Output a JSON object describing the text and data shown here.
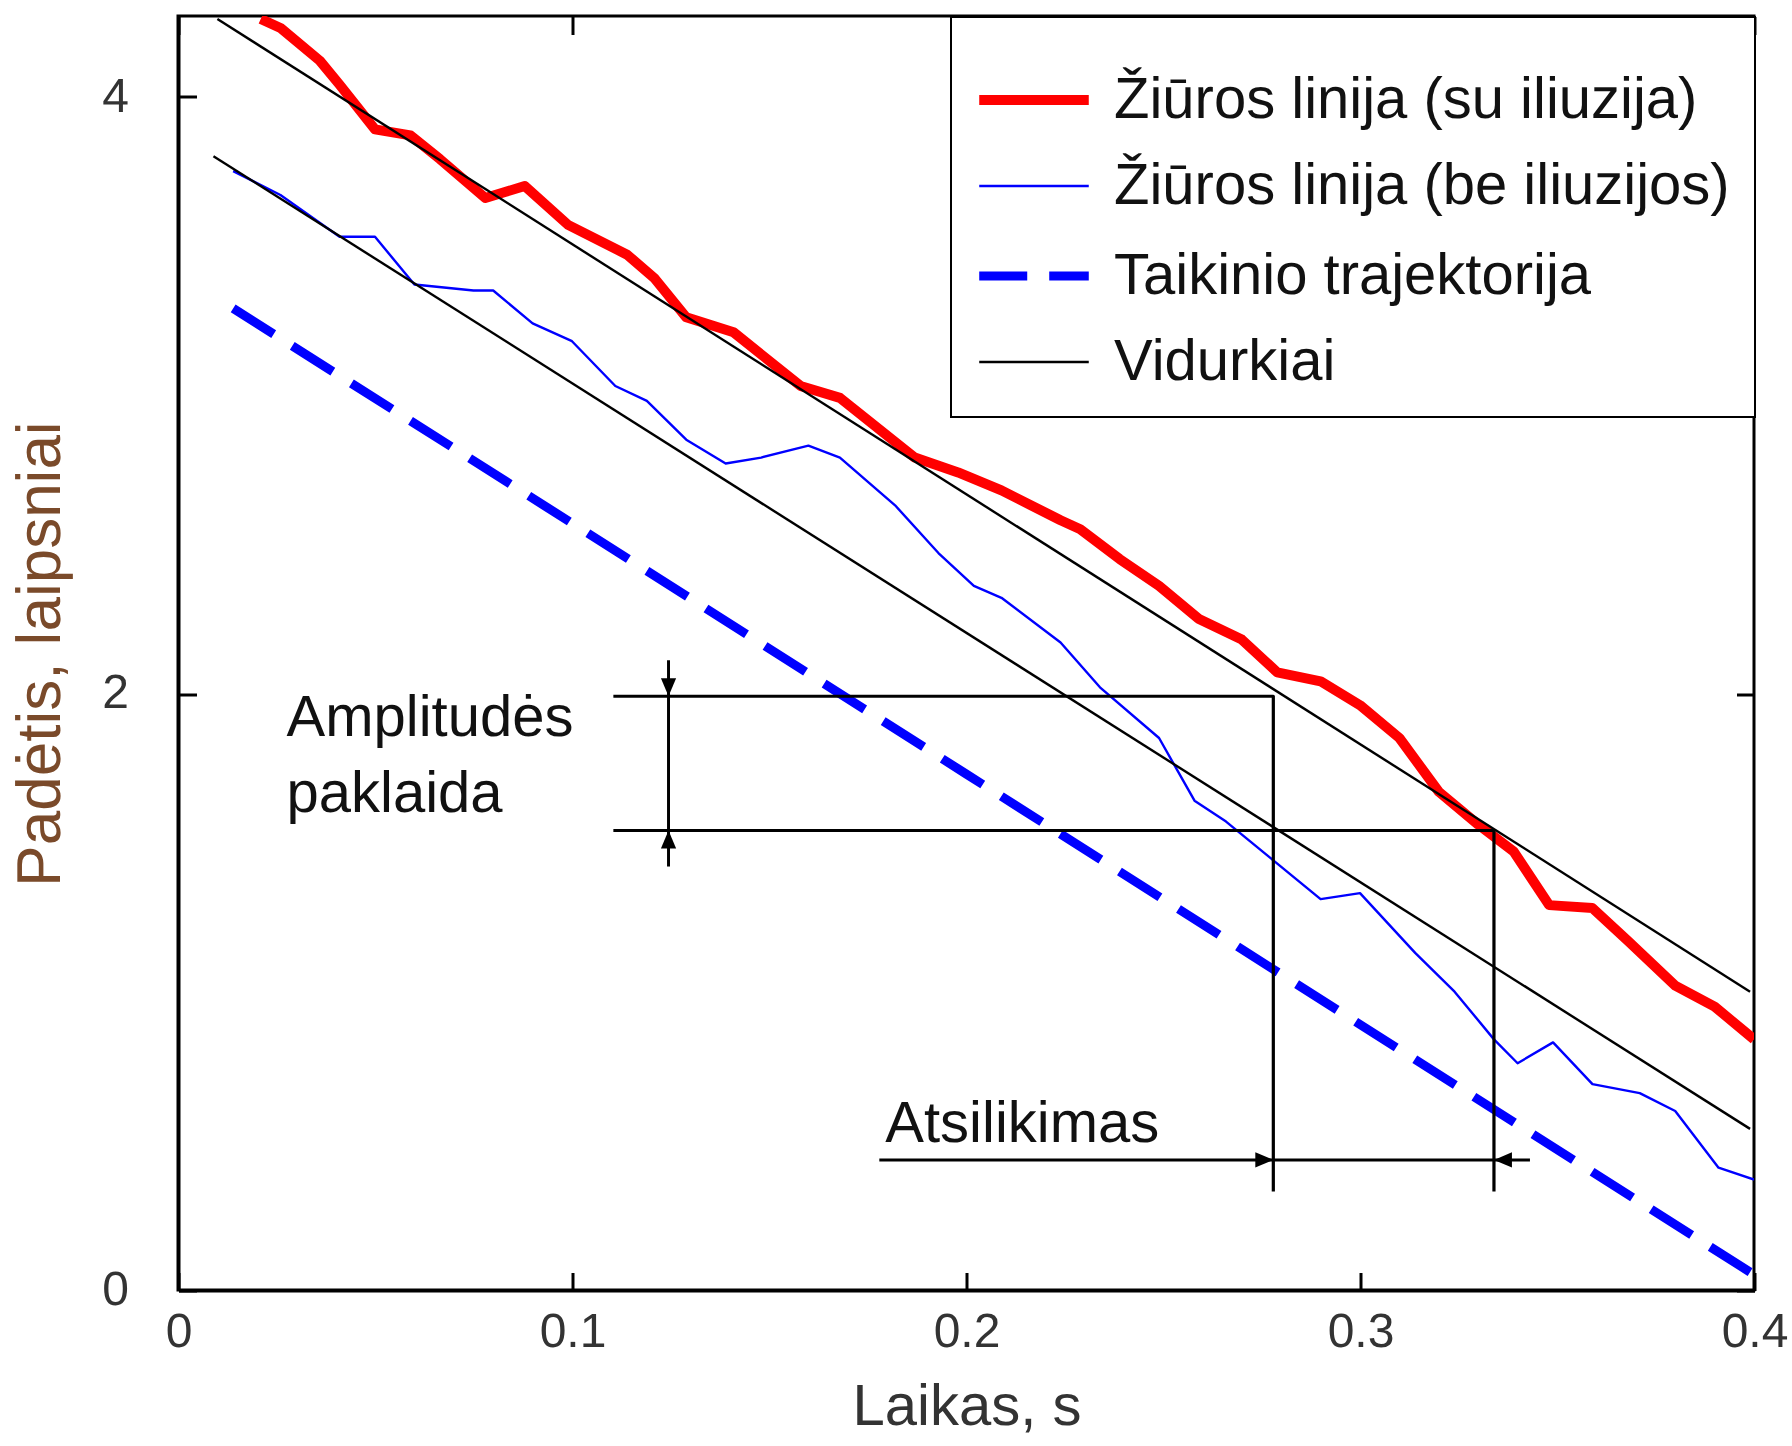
{
  "chart_data": {
    "type": "line",
    "xlabel": "Laikas, s",
    "ylabel": "Padėtis, laipsniai",
    "xlim": [
      0,
      0.4
    ],
    "ylim": [
      0,
      4.27
    ],
    "xticks": [
      0,
      0.1,
      0.2,
      0.3,
      0.4
    ],
    "yticks": [
      0,
      2,
      4
    ],
    "grid": false,
    "legend": "top right",
    "series": [
      {
        "name": "Žiūros linija (su iliuzija)",
        "color": "#ff0000",
        "x": [
          0.021,
          0.026,
          0.036,
          0.041,
          0.05,
          0.059,
          0.0665,
          0.078,
          0.083,
          0.088,
          0.099,
          0.114,
          0.121,
          0.129,
          0.141,
          0.158,
          0.168,
          0.187,
          0.198,
          0.209,
          0.224,
          0.229,
          0.239,
          0.249,
          0.259,
          0.27,
          0.279,
          0.29,
          0.3,
          0.31,
          0.32,
          0.33,
          0.339,
          0.348,
          0.359,
          0.368,
          0.38,
          0.39,
          0.4
        ],
        "values": [
          4.26,
          4.23,
          4.12,
          4.04,
          3.89,
          3.87,
          3.79,
          3.66,
          3.68,
          3.7,
          3.57,
          3.47,
          3.39,
          3.26,
          3.21,
          3.03,
          2.99,
          2.79,
          2.74,
          2.68,
          2.58,
          2.55,
          2.45,
          2.36,
          2.25,
          2.18,
          2.07,
          2.04,
          1.96,
          1.85,
          1.67,
          1.56,
          1.47,
          1.29,
          1.28,
          1.17,
          1.02,
          0.95,
          0.84
        ]
      },
      {
        "name": "Žiūros linija (be iliuzijos)",
        "color": "#0000ff",
        "x": [
          0.014,
          0.026,
          0.041,
          0.05,
          0.06,
          0.075,
          0.08,
          0.09,
          0.1,
          0.111,
          0.119,
          0.129,
          0.139,
          0.148,
          0.16,
          0.168,
          0.182,
          0.193,
          0.202,
          0.209,
          0.224,
          0.234,
          0.249,
          0.258,
          0.266,
          0.278,
          0.29,
          0.3,
          0.314,
          0.324,
          0.334,
          0.34,
          0.349,
          0.359,
          0.371,
          0.38,
          0.391,
          0.4
        ],
        "values": [
          3.75,
          3.67,
          3.53,
          3.53,
          3.37,
          3.35,
          3.35,
          3.24,
          3.18,
          3.03,
          2.98,
          2.85,
          2.77,
          2.79,
          2.83,
          2.79,
          2.63,
          2.47,
          2.36,
          2.32,
          2.17,
          2.02,
          1.85,
          1.64,
          1.57,
          1.44,
          1.31,
          1.33,
          1.13,
          1.0,
          0.84,
          0.76,
          0.83,
          0.69,
          0.66,
          0.6,
          0.41,
          0.37
        ]
      },
      {
        "name": "Taikinio trajektorija",
        "color": "#0000ff",
        "line_style": "dashed",
        "x": [
          0.014,
          0.1,
          0.2,
          0.3,
          0.399
        ],
        "values": [
          3.29,
          2.57,
          1.73,
          0.89,
          0.06
        ]
      },
      {
        "name": "Vidurkiai",
        "color": "#000000",
        "x": [
          0.01,
          0.399
        ],
        "values": [
          4.26,
          1.0
        ]
      },
      {
        "color": "#000000",
        "x": [
          0.009,
          0.399
        ],
        "values": [
          3.8,
          0.54
        ]
      },
      {
        "color": "#000000",
        "x": [
          0.1105,
          0.278,
          0.278
        ],
        "values": [
          1.99,
          1.99,
          0.33
        ]
      },
      {
        "color": "#000000",
        "x": [
          0.1105,
          0.334,
          0.334
        ],
        "values": [
          1.54,
          1.54,
          0.33
        ]
      }
    ],
    "annotations": [
      {
        "text": "Amplitudės paklaida",
        "x": 0.1245,
        "y": 1.99
      },
      {
        "text": "Atsilikimas",
        "x": 0.278,
        "y": 0.436
      }
    ]
  }
}
